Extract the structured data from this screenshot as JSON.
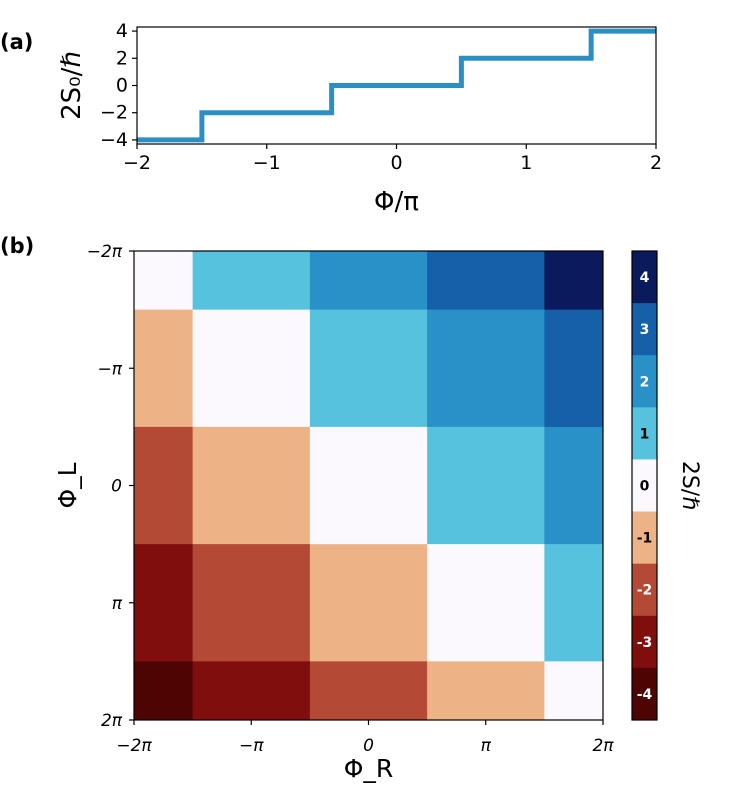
{
  "panel_labels": {
    "a": "(a)",
    "b": "(b)"
  },
  "chart_data": [
    {
      "id": "a",
      "type": "line",
      "title": "",
      "xlabel": "Φ/π",
      "ylabel": "2S₀/ℏ",
      "xlim": [
        -2,
        2
      ],
      "ylim": [
        -4.3,
        4.3
      ],
      "xticks": [
        -2,
        -1,
        0,
        1,
        2
      ],
      "xtick_labels": [
        "−2",
        "−1",
        "0",
        "1",
        "2"
      ],
      "yticks": [
        -4,
        -2,
        0,
        2,
        4
      ],
      "ytick_labels": [
        "−4",
        "−2",
        "0",
        "2",
        "4"
      ],
      "grid": false,
      "series": [
        {
          "name": "2S0/hbar",
          "color": "#2b8fc4",
          "x": [
            -2,
            -1.5,
            -1.5,
            -0.5,
            -0.5,
            0.5,
            0.5,
            1.5,
            1.5,
            2
          ],
          "y": [
            -4,
            -4,
            -2,
            -2,
            0,
            0,
            2,
            2,
            4,
            4
          ]
        }
      ]
    },
    {
      "id": "b",
      "type": "heatmap",
      "title": "",
      "xlabel": "Φ_R",
      "ylabel": "Φ_L",
      "xlim": [
        -2,
        2
      ],
      "ylim": [
        -2,
        2
      ],
      "x_unit": "π",
      "xticks": [
        -2,
        -1,
        0,
        1,
        2
      ],
      "xtick_labels": [
        "−2π",
        "−π",
        "0",
        "π",
        "2π"
      ],
      "yticks": [
        -2,
        -1,
        0,
        1,
        2
      ],
      "ytick_labels": [
        "−2π",
        "−π",
        "0",
        "π",
        "2π"
      ],
      "y_inverted": true,
      "x_edges": [
        -2,
        -1.5,
        -0.5,
        0.5,
        1.5,
        2
      ],
      "y_edges": [
        -2,
        -1.5,
        -0.5,
        0.5,
        1.5,
        2
      ],
      "values": [
        [
          0,
          1,
          2,
          3,
          4
        ],
        [
          -1,
          0,
          1,
          2,
          3
        ],
        [
          -2,
          -1,
          0,
          1,
          2
        ],
        [
          -3,
          -2,
          -1,
          0,
          1
        ],
        [
          -4,
          -3,
          -2,
          -1,
          0
        ]
      ],
      "colorbar": {
        "label": "2S/ℏ",
        "levels": [
          4,
          3,
          2,
          1,
          0,
          -1,
          -2,
          -3,
          -4
        ],
        "level_labels": [
          "4",
          "3",
          "2",
          "1",
          "0",
          "-1",
          "-2",
          "-3",
          "-4"
        ],
        "colors": {
          "4": "#0b1a5c",
          "3": "#1560a8",
          "2": "#2a90c8",
          "1": "#56c2de",
          "0": "#fbf9fe",
          "-1": "#edb387",
          "-2": "#b44935",
          "-3": "#7f0e0d",
          "-4": "#4f0404"
        }
      }
    }
  ]
}
